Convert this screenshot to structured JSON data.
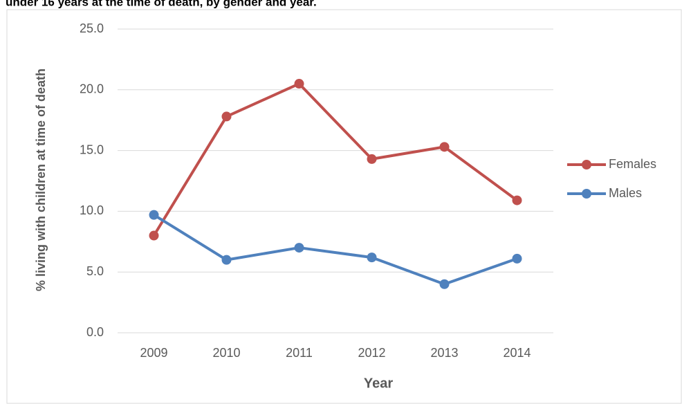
{
  "chart_data": {
    "type": "line",
    "title": "under 16 years at the time of death, by gender and year.",
    "x_label": "Year",
    "y_label": "% living with children at time of death",
    "categories": [
      "2009",
      "2010",
      "2011",
      "2012",
      "2013",
      "2014"
    ],
    "series": [
      {
        "name": "Females",
        "color": "#c0504d",
        "values": [
          8.0,
          17.8,
          20.5,
          14.3,
          15.3,
          10.9
        ]
      },
      {
        "name": "Males",
        "color": "#4f81bd",
        "values": [
          9.7,
          6.0,
          7.0,
          6.2,
          4.0,
          6.1
        ]
      }
    ],
    "ylim": [
      0,
      25
    ],
    "yticks": [
      {
        "value": 0,
        "label": "0.0"
      },
      {
        "value": 5,
        "label": "5.0"
      },
      {
        "value": 10,
        "label": "10.0"
      },
      {
        "value": 15,
        "label": "15.0"
      },
      {
        "value": 20,
        "label": "20.0"
      },
      {
        "value": 25,
        "label": "25.0"
      }
    ],
    "grid": true,
    "legend": "right"
  }
}
